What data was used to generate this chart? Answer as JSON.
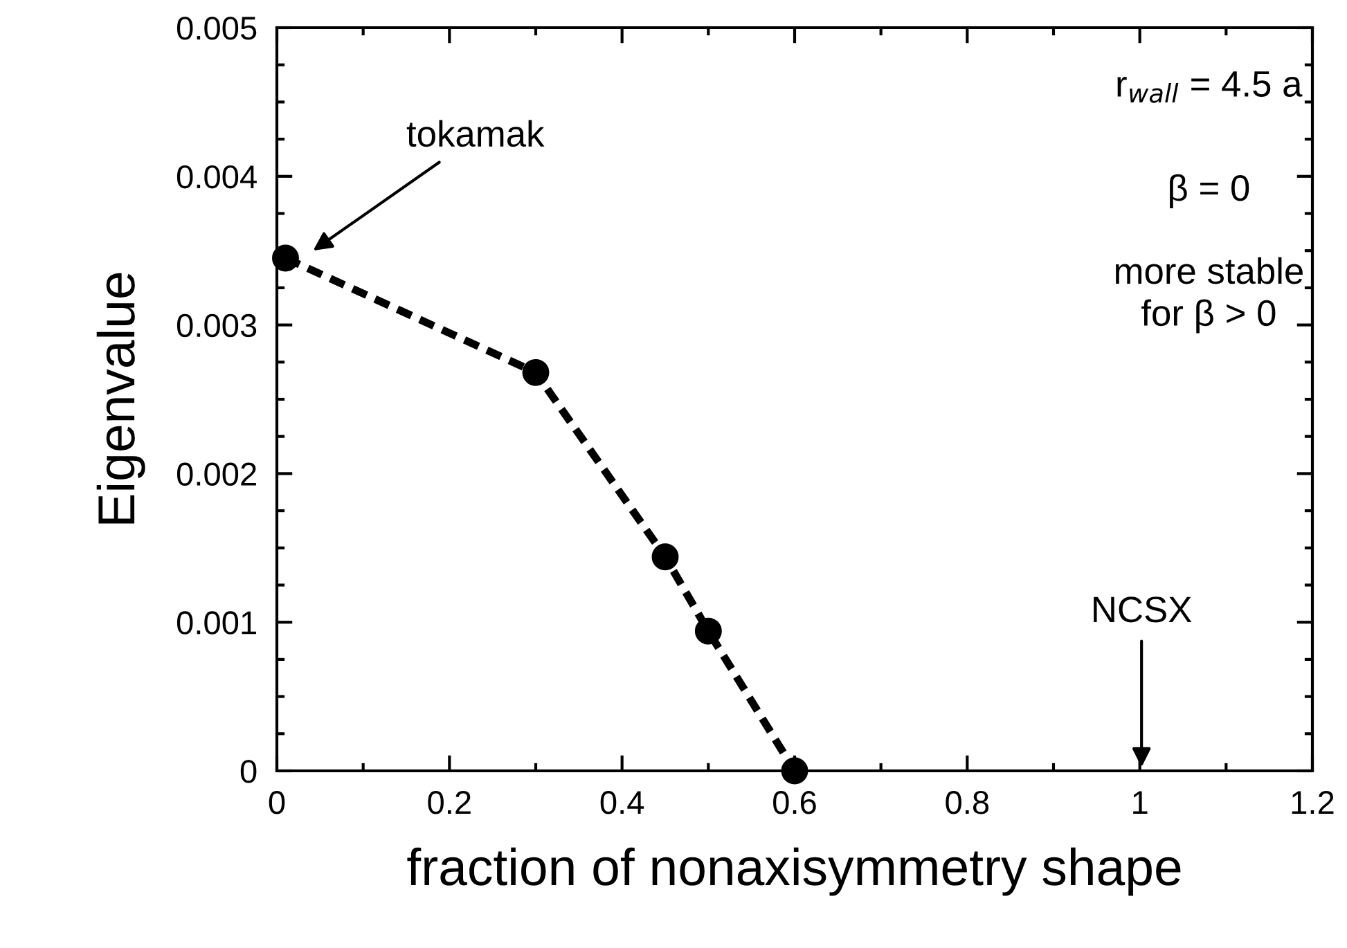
{
  "chart_data": {
    "type": "line",
    "xlabel": "fraction of nonaxisymmetry shape",
    "ylabel": "Eigenvalue",
    "x": [
      0.01,
      0.3,
      0.45,
      0.5,
      0.6
    ],
    "series": [
      {
        "color": "#000000",
        "values": [
          0.00345,
          0.00268,
          0.00144,
          0.00094,
          0
        ]
      }
    ],
    "marker": "circle",
    "line_style": "dashed",
    "grid": false,
    "xlim": [
      0,
      1.2
    ],
    "xticks": [
      0,
      0.2,
      0.4,
      0.6,
      0.8,
      1,
      1.2
    ],
    "ylim": [
      0,
      0.005
    ],
    "yticks": [
      0,
      0.001,
      0.002,
      0.003,
      0.004,
      0.005
    ],
    "annotations": [
      "tokamak",
      "NCSX",
      "r$_{wall}$ = 4.5 a",
      "β = 0",
      "more stable\nfor β > 0"
    ]
  }
}
